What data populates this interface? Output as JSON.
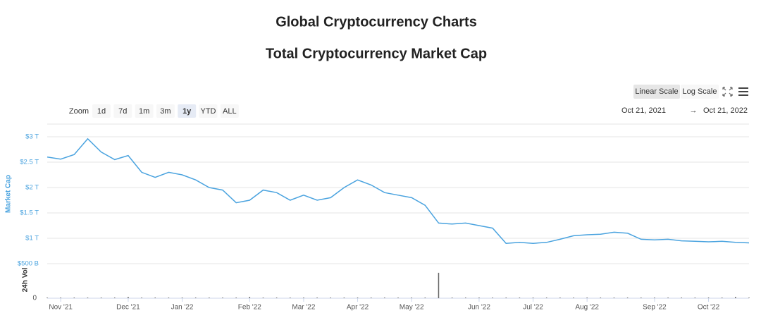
{
  "header": {
    "title": "Global Cryptocurrency Charts",
    "subtitle": "Total Cryptocurrency Market Cap"
  },
  "controls": {
    "zoom_label": "Zoom",
    "zoom": [
      {
        "label": "1d"
      },
      {
        "label": "7d"
      },
      {
        "label": "1m"
      },
      {
        "label": "3m"
      },
      {
        "label": "1y",
        "active": true
      },
      {
        "label": "YTD"
      },
      {
        "label": "ALL"
      }
    ],
    "scales": [
      {
        "label": "Linear Scale",
        "active": true
      },
      {
        "label": "Log Scale"
      }
    ],
    "range": {
      "from": "Oct 21, 2021",
      "arrow": "→",
      "to": "Oct 21, 2022"
    }
  },
  "chart_data": {
    "type": "line",
    "ylabel": "Market Cap",
    "color": "#4aa3df",
    "categories": [
      null,
      "Nov '21",
      null,
      null,
      null,
      null,
      "Dec '21",
      null,
      null,
      null,
      "Jan '22",
      null,
      null,
      null,
      null,
      "Feb '22",
      null,
      null,
      null,
      "Mar '22",
      null,
      null,
      null,
      "Apr '22",
      null,
      null,
      null,
      "May '22",
      null,
      null,
      null,
      null,
      "Jun '22",
      null,
      null,
      null,
      "Jul '22",
      null,
      null,
      null,
      "Aug '22",
      null,
      null,
      null,
      null,
      "Sep '22",
      null,
      null,
      null,
      "Oct '22",
      null,
      null,
      null
    ],
    "values": [
      2.6,
      2.56,
      2.65,
      2.96,
      2.7,
      2.55,
      2.63,
      2.3,
      2.2,
      2.3,
      2.25,
      2.15,
      2.0,
      1.95,
      1.7,
      1.75,
      1.95,
      1.9,
      1.75,
      1.85,
      1.75,
      1.8,
      2.0,
      2.15,
      2.05,
      1.9,
      1.85,
      1.8,
      1.65,
      1.3,
      1.28,
      1.3,
      1.25,
      1.2,
      0.9,
      0.92,
      0.9,
      0.92,
      0.98,
      1.05,
      1.07,
      1.08,
      1.12,
      1.1,
      0.98,
      0.97,
      0.98,
      0.95,
      0.94,
      0.93,
      0.94,
      0.92,
      0.91
    ],
    "ylim": [
      0.5,
      3.25
    ],
    "yticks": [
      {
        "value": 0.5,
        "label": "$500 B"
      },
      {
        "value": 1,
        "label": "$1 T"
      },
      {
        "value": 1.5,
        "label": "$1.5 T"
      },
      {
        "value": 2,
        "label": "$2 T"
      },
      {
        "value": 2.5,
        "label": "$2.5 T"
      },
      {
        "value": 3,
        "label": "$3 T"
      }
    ],
    "grid": true,
    "volume": {
      "ylabel": "24h Vol",
      "color": "#666",
      "ylim": [
        0,
        40
      ],
      "yticks": [
        0
      ],
      "values": [
        1,
        1,
        1,
        1,
        1,
        1,
        2,
        1,
        1,
        1,
        1,
        1,
        1,
        1,
        1,
        2,
        1,
        1,
        1,
        1,
        1,
        1,
        1,
        1,
        1,
        1,
        1,
        1,
        1,
        38,
        1,
        1,
        1,
        1,
        1,
        1,
        1,
        1,
        1,
        1,
        1,
        1,
        1,
        1,
        1,
        1,
        1,
        1,
        1,
        1,
        1,
        2,
        1
      ]
    }
  }
}
